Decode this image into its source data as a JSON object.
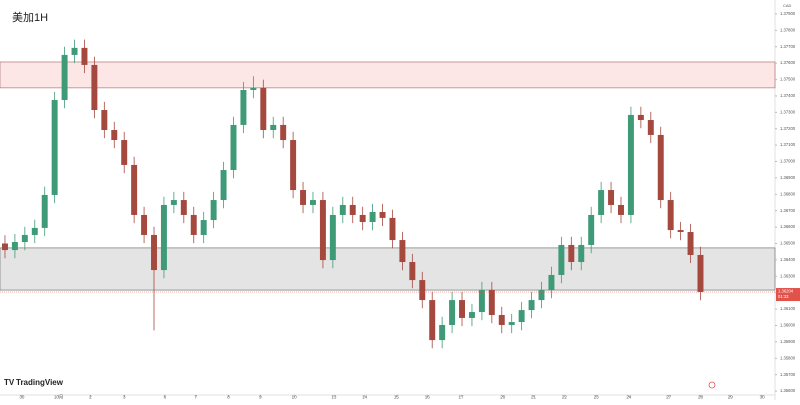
{
  "chart_data": {
    "type": "candlestick",
    "title": "美加1H",
    "brand": "TradingView",
    "currency": "CAD",
    "countdown": "01:33",
    "up_color": "#3f9a78",
    "down_color": "#a5493f",
    "grid": false,
    "open": [
      1.365,
      1.3646,
      1.36509,
      1.36552,
      1.36595,
      1.36796,
      1.37375,
      1.3765,
      1.37693,
      1.37589,
      1.37314,
      1.37192,
      1.37131,
      1.36979,
      1.36674,
      1.36552,
      1.36338,
      1.36735,
      1.36765,
      1.36674,
      1.36552,
      1.36643,
      1.36765,
      1.36948,
      1.37223,
      1.37436,
      1.37449,
      1.37192,
      1.37223,
      1.37131,
      1.36826,
      1.36735,
      1.36765,
      1.36399,
      1.36674,
      1.36735,
      1.36674,
      1.36631,
      1.36692,
      1.36656,
      1.36521,
      1.36387,
      1.36277,
      1.36155,
      1.35911,
      1.36003,
      1.36155,
      1.36046,
      1.36082,
      1.36216,
      1.36064,
      1.36003,
      1.36021,
      1.36094,
      1.36155,
      1.36216,
      1.36308,
      1.36491,
      1.36387,
      1.36491,
      1.36674,
      1.36826,
      1.36735,
      1.36674,
      1.37284,
      1.37253,
      1.37162,
      1.36765,
      1.36582,
      1.3657,
      1.3643
    ],
    "high": [
      1.3655,
      1.36559,
      1.36602,
      1.36645,
      1.36846,
      1.37425,
      1.377,
      1.37743,
      1.37743,
      1.37639,
      1.37364,
      1.37242,
      1.37181,
      1.37029,
      1.36724,
      1.36602,
      1.36785,
      1.36815,
      1.36815,
      1.36724,
      1.36693,
      1.36815,
      1.36998,
      1.37273,
      1.37486,
      1.3752,
      1.37499,
      1.37273,
      1.37273,
      1.37181,
      1.36876,
      1.36815,
      1.36815,
      1.36724,
      1.36785,
      1.36785,
      1.36724,
      1.36742,
      1.36742,
      1.36706,
      1.36571,
      1.36437,
      1.36327,
      1.36205,
      1.36053,
      1.36205,
      1.36205,
      1.36132,
      1.36266,
      1.36266,
      1.36114,
      1.36071,
      1.36144,
      1.36205,
      1.36266,
      1.36358,
      1.36541,
      1.36541,
      1.36541,
      1.36724,
      1.36876,
      1.36876,
      1.36785,
      1.37334,
      1.37334,
      1.37303,
      1.37212,
      1.36815,
      1.36632,
      1.3662,
      1.3648
    ],
    "low": [
      1.3641,
      1.3641,
      1.36459,
      1.36502,
      1.36545,
      1.36746,
      1.37325,
      1.376,
      1.37539,
      1.37264,
      1.37142,
      1.37081,
      1.36929,
      1.36624,
      1.36502,
      1.3597,
      1.36288,
      1.36685,
      1.36624,
      1.36502,
      1.36502,
      1.36593,
      1.36715,
      1.36898,
      1.37173,
      1.37386,
      1.37142,
      1.37142,
      1.37081,
      1.36776,
      1.36685,
      1.36685,
      1.36349,
      1.36349,
      1.36624,
      1.36624,
      1.36581,
      1.36581,
      1.36606,
      1.36471,
      1.36337,
      1.36227,
      1.36105,
      1.35861,
      1.35861,
      1.35953,
      1.35996,
      1.35996,
      1.36032,
      1.36014,
      1.35953,
      1.35953,
      1.35971,
      1.36044,
      1.36105,
      1.36166,
      1.36258,
      1.36337,
      1.36337,
      1.36441,
      1.36624,
      1.36685,
      1.36624,
      1.36624,
      1.37203,
      1.37112,
      1.36715,
      1.36532,
      1.3652,
      1.3638,
      1.36154
    ],
    "close": [
      1.3646,
      1.36509,
      1.36552,
      1.36595,
      1.36796,
      1.37375,
      1.3765,
      1.37693,
      1.37589,
      1.37314,
      1.37192,
      1.37131,
      1.36979,
      1.36674,
      1.36552,
      1.36338,
      1.36735,
      1.36765,
      1.36674,
      1.36552,
      1.36643,
      1.36765,
      1.36948,
      1.37223,
      1.37436,
      1.37449,
      1.37192,
      1.37223,
      1.37131,
      1.36826,
      1.36735,
      1.36765,
      1.36399,
      1.36674,
      1.36735,
      1.36674,
      1.36631,
      1.36692,
      1.36656,
      1.36521,
      1.36387,
      1.36277,
      1.36155,
      1.35911,
      1.36003,
      1.36155,
      1.36046,
      1.36082,
      1.36216,
      1.36064,
      1.36003,
      1.36021,
      1.36094,
      1.36155,
      1.36216,
      1.36308,
      1.36491,
      1.36387,
      1.36491,
      1.36674,
      1.36826,
      1.36735,
      1.36674,
      1.37284,
      1.37253,
      1.37162,
      1.36765,
      1.36582,
      1.3657,
      1.3643,
      1.36204
    ],
    "xlim": [
      -0.5,
      77.5
    ],
    "xticks": [
      {
        "value": 1.7,
        "label": "30"
      },
      {
        "value": 5.4,
        "label": "10月"
      },
      {
        "value": 8.6,
        "label": "2"
      },
      {
        "value": 12,
        "label": "3"
      },
      {
        "value": 16.1,
        "label": "6"
      },
      {
        "value": 19.2,
        "label": "7"
      },
      {
        "value": 22.5,
        "label": "8"
      },
      {
        "value": 25.7,
        "label": "9"
      },
      {
        "value": 29.1,
        "label": "10"
      },
      {
        "value": 33.1,
        "label": "13"
      },
      {
        "value": 36.2,
        "label": "14"
      },
      {
        "value": 39.4,
        "label": "15"
      },
      {
        "value": 42.5,
        "label": "16"
      },
      {
        "value": 45.9,
        "label": "17"
      },
      {
        "value": 50.1,
        "label": "20"
      },
      {
        "value": 53.2,
        "label": "21"
      },
      {
        "value": 56.3,
        "label": "22"
      },
      {
        "value": 59.5,
        "label": "23"
      },
      {
        "value": 62.8,
        "label": "24"
      },
      {
        "value": 66.8,
        "label": "27"
      },
      {
        "value": 70,
        "label": "28"
      },
      {
        "value": 73,
        "label": "29"
      },
      {
        "value": 76.2,
        "label": "30"
      }
    ],
    "ylim": [
      1.35576,
      1.37985
    ],
    "yticks": [
      {
        "value": 1.356,
        "label": "1.35600"
      },
      {
        "value": 1.357,
        "label": "1.35700"
      },
      {
        "value": 1.358,
        "label": "1.35800"
      },
      {
        "value": 1.359,
        "label": "1.35900"
      },
      {
        "value": 1.36,
        "label": "1.36000"
      },
      {
        "value": 1.361,
        "label": "1.36100"
      },
      {
        "value": 1.362,
        "label": "1.36200"
      },
      {
        "value": 1.363,
        "label": "1.36300"
      },
      {
        "value": 1.364,
        "label": "1.36400"
      },
      {
        "value": 1.365,
        "label": "1.36500"
      },
      {
        "value": 1.366,
        "label": "1.36600"
      },
      {
        "value": 1.367,
        "label": "1.36700"
      },
      {
        "value": 1.368,
        "label": "1.36800"
      },
      {
        "value": 1.369,
        "label": "1.36900"
      },
      {
        "value": 1.37,
        "label": "1.37000"
      },
      {
        "value": 1.371,
        "label": "1.37100"
      },
      {
        "value": 1.372,
        "label": "1.37200"
      },
      {
        "value": 1.373,
        "label": "1.37300"
      },
      {
        "value": 1.374,
        "label": "1.37400"
      },
      {
        "value": 1.375,
        "label": "1.37500"
      },
      {
        "value": 1.376,
        "label": "1.37600"
      },
      {
        "value": 1.377,
        "label": "1.37700"
      },
      {
        "value": 1.378,
        "label": "1.37800"
      },
      {
        "value": 1.379,
        "label": "1.37900"
      }
    ],
    "zones": [
      {
        "low": 1.37449,
        "high": 1.37607,
        "color": "#fde6e6",
        "border": "#a06060"
      },
      {
        "low": 1.36216,
        "high": 1.36473,
        "color": "#e4e4e4",
        "border": "#606060"
      }
    ],
    "last_price": {
      "value": 1.36204,
      "label": "1.36204",
      "color": "#e0524a"
    }
  }
}
